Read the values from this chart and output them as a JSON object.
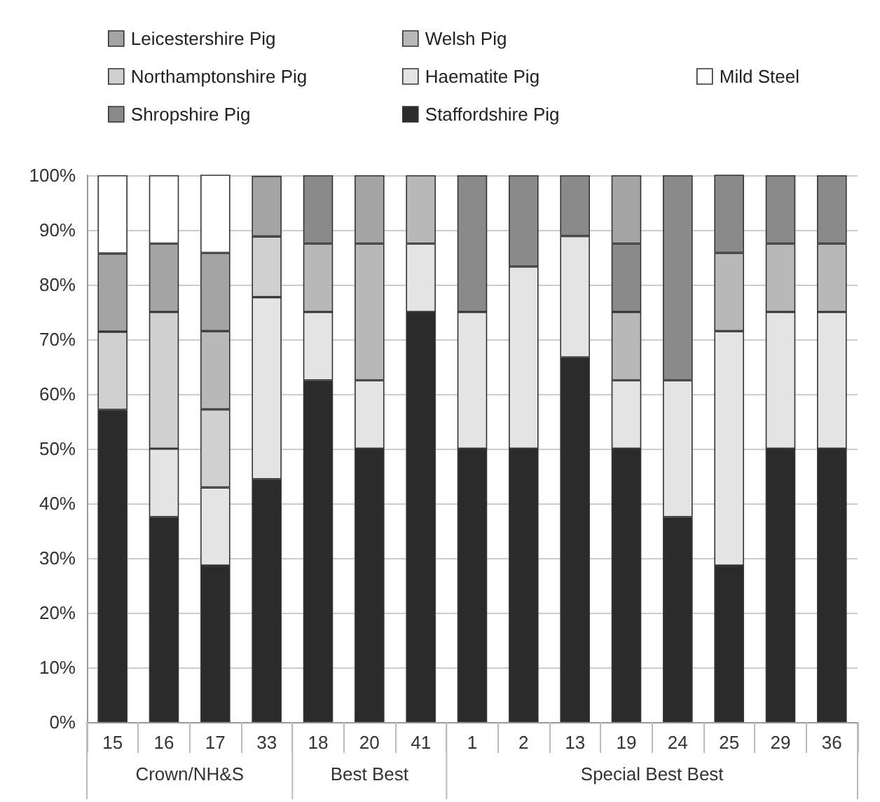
{
  "chart_data": {
    "type": "bar",
    "stacked": true,
    "categories": [
      "15",
      "16",
      "17",
      "33",
      "18",
      "20",
      "41",
      "1",
      "2",
      "13",
      "19",
      "24",
      "25",
      "29",
      "36"
    ],
    "series": [
      {
        "name": "Staffordshire Pig",
        "color": "#2b2b2b",
        "values": [
          57.1,
          37.5,
          28.6,
          44.4,
          62.5,
          50,
          75,
          50,
          50,
          66.7,
          50,
          37.5,
          28.6,
          50,
          50
        ]
      },
      {
        "name": "Haematite Pig",
        "color": "#e4e4e4",
        "values": [
          null,
          12.5,
          14.3,
          33.3,
          12.5,
          12.5,
          12.5,
          25,
          33.3,
          22.2,
          12.5,
          25,
          42.9,
          25,
          25
        ]
      },
      {
        "name": "Northamptonshire Pig",
        "color": "#d0d0d0",
        "values": [
          14.3,
          25,
          14.3,
          11.1,
          null,
          null,
          null,
          null,
          null,
          null,
          null,
          null,
          null,
          null,
          null
        ]
      },
      {
        "name": "Welsh Pig",
        "color": "#b8b8b8",
        "values": [
          null,
          null,
          14.3,
          null,
          12.5,
          25,
          12.5,
          null,
          null,
          null,
          12.5,
          null,
          14.3,
          12.5,
          12.5
        ]
      },
      {
        "name": "Shropshire Pig",
        "color": "#8a8a8a",
        "values": [
          null,
          null,
          null,
          null,
          12.5,
          null,
          null,
          25,
          16.7,
          11.1,
          12.5,
          37.5,
          14.3,
          12.5,
          12.5
        ]
      },
      {
        "name": "Leicestershire Pig",
        "color": "#a4a4a4",
        "values": [
          14.3,
          12.5,
          14.3,
          11.1,
          null,
          12.5,
          null,
          null,
          null,
          null,
          12.5,
          null,
          null,
          null,
          null
        ]
      },
      {
        "name": "Mild Steel",
        "color": "#ffffff",
        "values": [
          14.3,
          12.5,
          14.3,
          null,
          null,
          null,
          null,
          null,
          null,
          null,
          null,
          null,
          null,
          null,
          null
        ]
      }
    ],
    "ylim": [
      0,
      100
    ],
    "yticks": [
      {
        "value": 0,
        "label": "0%"
      },
      {
        "value": 10,
        "label": "10%"
      },
      {
        "value": 20,
        "label": "20%"
      },
      {
        "value": 30,
        "label": "30%"
      },
      {
        "value": 40,
        "label": "40%"
      },
      {
        "value": 50,
        "label": "50%"
      },
      {
        "value": 60,
        "label": "60%"
      },
      {
        "value": 70,
        "label": "70%"
      },
      {
        "value": 80,
        "label": "80%"
      },
      {
        "value": 90,
        "label": "90%"
      },
      {
        "value": 100,
        "label": "100%"
      }
    ],
    "grid": "y",
    "legend": "top",
    "annotations": [
      "Crown/NH&S",
      "Best Best",
      "Special Best Best"
    ]
  }
}
